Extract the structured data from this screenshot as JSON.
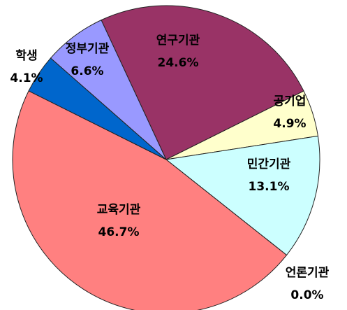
{
  "chart_data": {
    "type": "pie",
    "categories": [
      "연구기관",
      "공기업",
      "민간기관",
      "언론기관",
      "교육기관",
      "학생",
      "정부기관"
    ],
    "values": [
      24.6,
      4.9,
      13.1,
      0.0,
      46.7,
      4.1,
      6.6
    ],
    "value_labels": [
      "24.6%",
      "4.9%",
      "13.1%",
      "0.0%",
      "46.7%",
      "4.1%",
      "6.6%"
    ],
    "colors": [
      "#993366",
      "#ffffcc",
      "#ccffff",
      "#ffffff",
      "#ff8080",
      "#0066cc",
      "#9999ff"
    ]
  }
}
